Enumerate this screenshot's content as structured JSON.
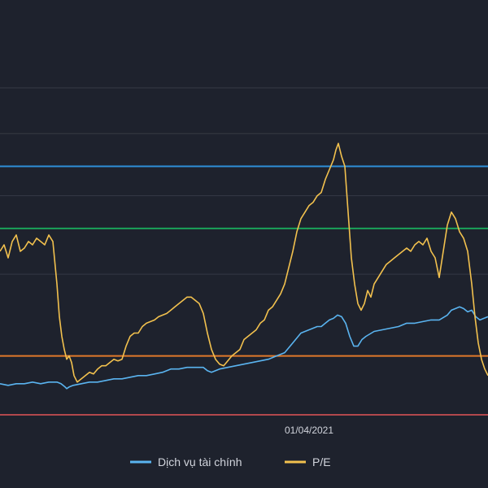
{
  "chart_data": {
    "type": "line",
    "x_tick_labels": [
      {
        "date": "2021-04-01",
        "label": "01/04/2021"
      }
    ],
    "y_range": [
      0,
      100
    ],
    "grid_lines_y": [
      100,
      86,
      76,
      67,
      57,
      43
    ],
    "reference_lines": [
      {
        "y": 76,
        "color": "#2f8fd8"
      },
      {
        "y": 57,
        "color": "#1aa35a"
      },
      {
        "y": 18,
        "color": "#e0782a"
      },
      {
        "y": 0,
        "color": "#b2484c"
      }
    ],
    "legend": {
      "position": "bottom-center",
      "items": [
        {
          "name": "Dịch vụ tài chính",
          "color": "#5ab4f0"
        },
        {
          "name": "P/E",
          "color": "#f2c14e"
        }
      ]
    },
    "series": [
      {
        "name": "Dịch vụ tài chính",
        "color": "#5ab4f0",
        "x": [
          0,
          10,
          20,
          30,
          40,
          50,
          60,
          70,
          75,
          80,
          82,
          85,
          90,
          100,
          110,
          120,
          130,
          140,
          150,
          160,
          170,
          180,
          190,
          200,
          210,
          220,
          230,
          240,
          250,
          255,
          260,
          265,
          270,
          280,
          290,
          300,
          310,
          320,
          330,
          340,
          350,
          360,
          370,
          380,
          390,
          395,
          400,
          405,
          410,
          415,
          420,
          425,
          430,
          435,
          440,
          445,
          450,
          460,
          470,
          480,
          490,
          500,
          510,
          520,
          530,
          540,
          550,
          555,
          560,
          565,
          570,
          575,
          580,
          585,
          590,
          595,
          600
        ],
        "values": [
          9.5,
          9.0,
          9.5,
          9.5,
          10,
          9.5,
          10,
          10,
          9.5,
          8.5,
          8.0,
          8.5,
          9,
          9.5,
          10,
          10,
          10.5,
          11,
          11,
          11.5,
          12,
          12,
          12.5,
          13,
          14,
          14,
          14.5,
          14.5,
          14.5,
          13.5,
          13,
          13.5,
          14,
          14.5,
          15,
          15.5,
          16,
          16.5,
          17,
          18,
          19,
          22,
          25,
          26,
          27,
          27,
          28,
          29,
          29.5,
          30.5,
          30,
          28,
          24,
          21,
          21,
          23,
          24,
          25.5,
          26,
          26.5,
          27,
          28,
          28,
          28.5,
          29,
          29,
          30.5,
          32,
          32.5,
          33,
          32.5,
          31.5,
          32,
          30,
          29,
          29.5,
          30
        ]
      },
      {
        "name": "P/E",
        "color": "#f2c14e",
        "x": [
          0,
          5,
          10,
          15,
          20,
          25,
          30,
          35,
          40,
          45,
          50,
          55,
          60,
          65,
          70,
          73,
          76,
          79,
          82,
          85,
          88,
          91,
          95,
          100,
          105,
          110,
          115,
          120,
          125,
          130,
          135,
          140,
          145,
          150,
          155,
          160,
          165,
          170,
          175,
          180,
          185,
          190,
          195,
          200,
          205,
          210,
          215,
          220,
          225,
          230,
          235,
          240,
          245,
          250,
          255,
          260,
          265,
          270,
          275,
          280,
          285,
          290,
          295,
          300,
          305,
          310,
          315,
          320,
          325,
          330,
          335,
          340,
          345,
          350,
          355,
          360,
          365,
          370,
          375,
          380,
          385,
          390,
          395,
          400,
          405,
          410,
          413,
          416,
          420,
          424,
          428,
          432,
          436,
          440,
          444,
          448,
          452,
          456,
          460,
          465,
          470,
          475,
          480,
          485,
          490,
          495,
          500,
          505,
          510,
          515,
          520,
          525,
          530,
          535,
          540,
          545,
          550,
          555,
          560,
          565,
          570,
          575,
          580,
          584,
          588,
          592,
          596,
          600
        ],
        "values": [
          50,
          52,
          48,
          53,
          55,
          50,
          51,
          53,
          52,
          54,
          53,
          52,
          55,
          53,
          40,
          30,
          24,
          20,
          17,
          18,
          16,
          12,
          10,
          11,
          12,
          13,
          12.5,
          14,
          15,
          15,
          16,
          17,
          16.5,
          17,
          21,
          24,
          25,
          25,
          27,
          28,
          28.5,
          29,
          30,
          30.5,
          31,
          32,
          33,
          34,
          35,
          36,
          36,
          35,
          34,
          31,
          25,
          20,
          17,
          15.5,
          15,
          16.5,
          18,
          19,
          20,
          23,
          24,
          25,
          26,
          28,
          29,
          32,
          33,
          35,
          37,
          40,
          45,
          50,
          56,
          60,
          62,
          64,
          65,
          67,
          68,
          72,
          75,
          78,
          81,
          83,
          79,
          76,
          62,
          48,
          40,
          34,
          32,
          34,
          38,
          36,
          40,
          42,
          44,
          46,
          47,
          48,
          49,
          50,
          51,
          50,
          52,
          53,
          52,
          54,
          50,
          48,
          42,
          50,
          58,
          62,
          60,
          56,
          54,
          50,
          40,
          30,
          22,
          17,
          14,
          12
        ]
      }
    ]
  }
}
